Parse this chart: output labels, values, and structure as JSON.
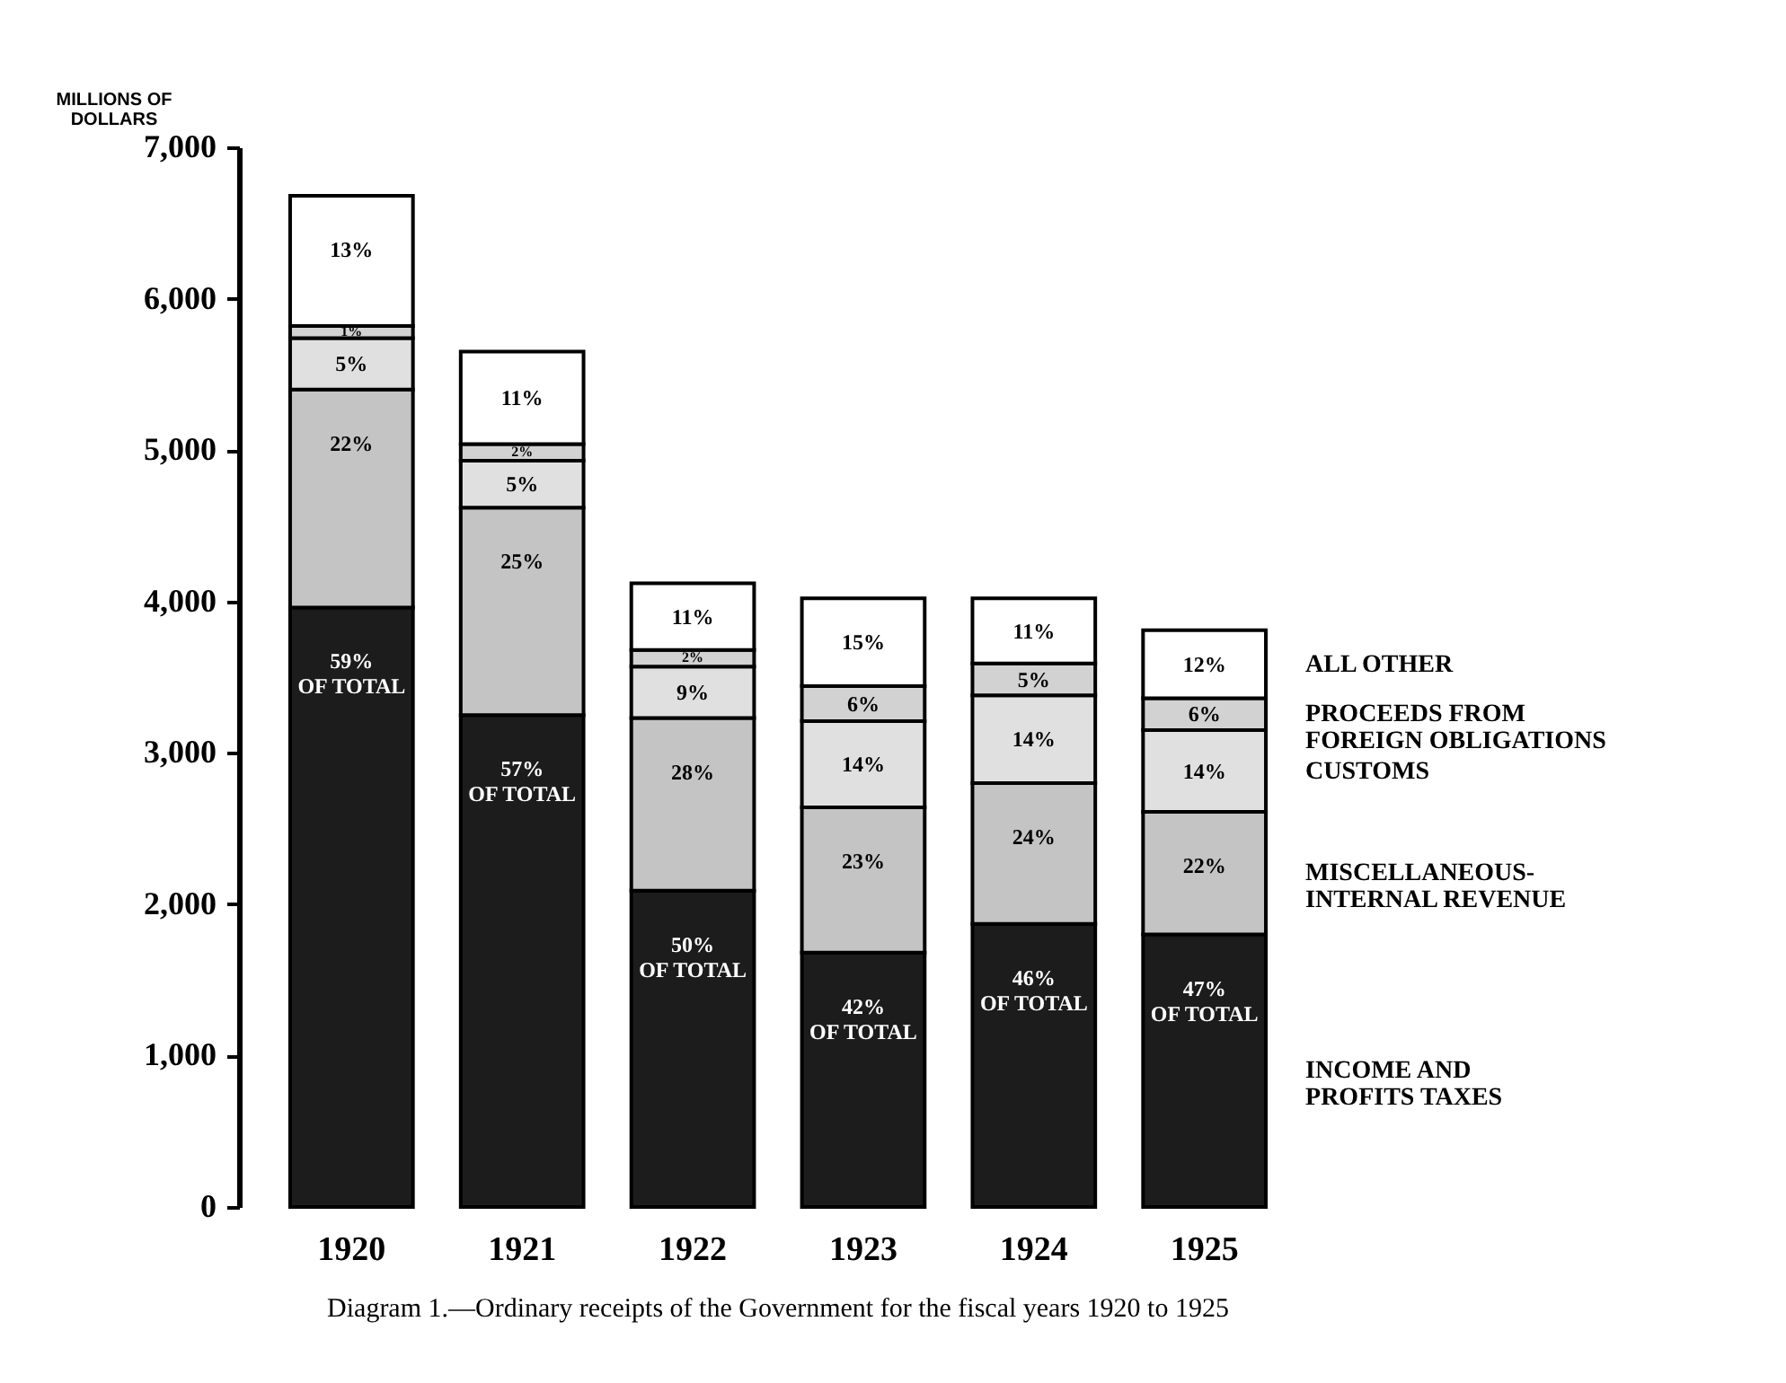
{
  "chart_data": {
    "type": "bar",
    "stacked": true,
    "title": "Diagram 1.—Ordinary receipts of the Government for the fiscal years 1920 to 1925",
    "ylabel": "MILLIONS OF DOLLARS",
    "categories": [
      "1920",
      "1921",
      "1922",
      "1923",
      "1924",
      "1925"
    ],
    "series": [
      {
        "name": "INCOME AND PROFITS TAXES",
        "color": "#1c1c1c",
        "values": [
          3960,
          3250,
          2090,
          1680,
          1870,
          1800
        ]
      },
      {
        "name": "MISCELLANEOUS-INTERNAL REVENUE",
        "color": "#c4c4c4",
        "values": [
          1440,
          1370,
          1140,
          960,
          930,
          810
        ]
      },
      {
        "name": "CUSTOMS",
        "color": "#e0e0e0",
        "values": [
          340,
          310,
          340,
          570,
          580,
          540
        ]
      },
      {
        "name": "PROCEEDS FROM FOREIGN OBLIGATIONS",
        "color": "#d2d2d2",
        "values": [
          80,
          110,
          110,
          230,
          210,
          210
        ]
      },
      {
        "name": "ALL OTHER",
        "color": "#ffffff",
        "values": [
          860,
          610,
          440,
          580,
          430,
          450
        ]
      }
    ],
    "annotations": [
      {
        "text": "59%\nOF TOTAL",
        "x": "1920",
        "y": 3960
      },
      {
        "text": "57%\nOF TOTAL",
        "x": "1921",
        "y": 3250
      },
      {
        "text": "50%\nOF TOTAL",
        "x": "1922",
        "y": 2090
      },
      {
        "text": "42%\nOF TOTAL",
        "x": "1923",
        "y": 1680
      },
      {
        "text": "46%\nOF TOTAL",
        "x": "1924",
        "y": 1870
      },
      {
        "text": "47%\nOF TOTAL",
        "x": "1925",
        "y": 1800
      },
      {
        "text": "22%",
        "x": "1920",
        "y": 5400
      },
      {
        "text": "25%",
        "x": "1921",
        "y": 4620
      },
      {
        "text": "28%",
        "x": "1922",
        "y": 3230
      },
      {
        "text": "23%",
        "x": "1923",
        "y": 2640
      },
      {
        "text": "24%",
        "x": "1924",
        "y": 2800
      },
      {
        "text": "22%",
        "x": "1925",
        "y": 2610
      },
      {
        "text": "5%",
        "x": "1920",
        "y": 5740
      },
      {
        "text": "5%",
        "x": "1921",
        "y": 4930
      },
      {
        "text": "9%",
        "x": "1922",
        "y": 3570
      },
      {
        "text": "14%",
        "x": "1923",
        "y": 3210
      },
      {
        "text": "14%",
        "x": "1924",
        "y": 3380
      },
      {
        "text": "14%",
        "x": "1925",
        "y": 3150
      },
      {
        "text": "1%",
        "x": "1920",
        "y": 5820
      },
      {
        "text": "2%",
        "x": "1921",
        "y": 5040
      },
      {
        "text": "2%",
        "x": "1922",
        "y": 3680
      },
      {
        "text": "6%",
        "x": "1923",
        "y": 3440
      },
      {
        "text": "5%",
        "x": "1924",
        "y": 3590
      },
      {
        "text": "6%",
        "x": "1925",
        "y": 3360
      },
      {
        "text": "13%",
        "x": "1920",
        "y": 6680
      },
      {
        "text": "11%",
        "x": "1921",
        "y": 5650
      },
      {
        "text": "11%",
        "x": "1922",
        "y": 4120
      },
      {
        "text": "15%",
        "x": "1923",
        "y": 4020
      },
      {
        "text": "11%",
        "x": "1924",
        "y": 4020
      },
      {
        "text": "12%",
        "x": "1925",
        "y": 3810
      }
    ],
    "ylim": [
      0,
      7000
    ],
    "yticks": [
      {
        "value": 0,
        "label": "0"
      },
      {
        "value": 1000,
        "label": "1,000"
      },
      {
        "value": 2000,
        "label": "2,000"
      },
      {
        "value": 3000,
        "label": "3,000"
      },
      {
        "value": 4000,
        "label": "4,000"
      },
      {
        "value": 5000,
        "label": "5,000"
      },
      {
        "value": 6000,
        "label": "6,000"
      },
      {
        "value": 7000,
        "label": "7,000"
      }
    ],
    "grid": false,
    "legend": "right"
  }
}
